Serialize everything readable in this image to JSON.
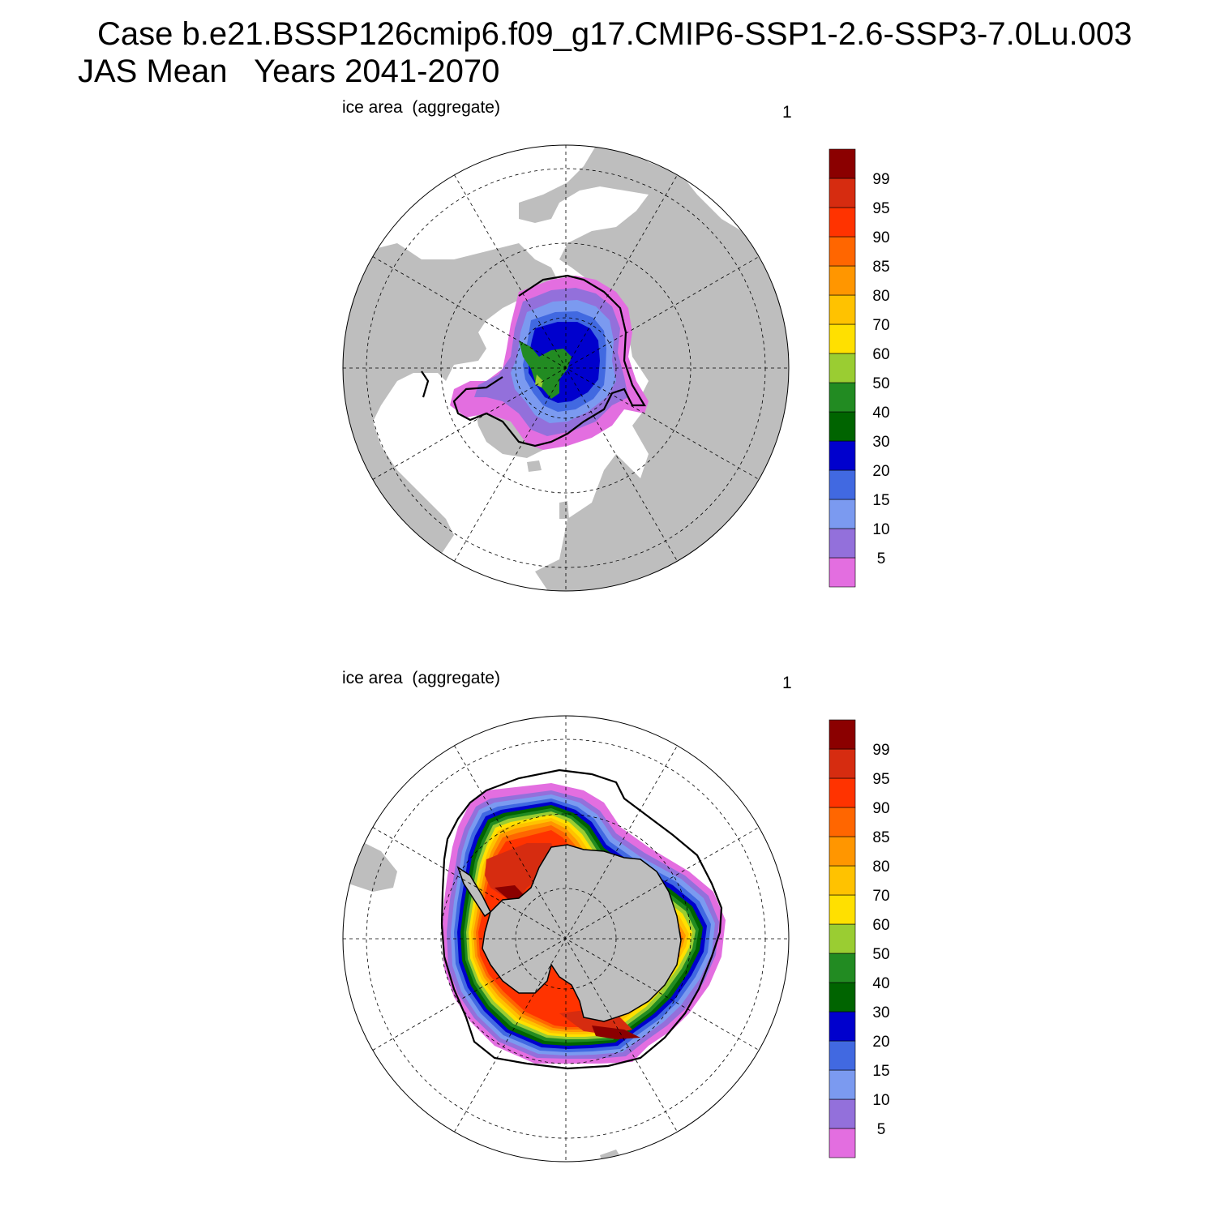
{
  "title": {
    "line1": "Case b.e21.BSSP126cmip6.f09_g17.CMIP6-SSP1-2.6-SSP3-7.0Lu.003",
    "line2": "JAS Mean   Years 2041-2070"
  },
  "colors": {
    "land": "#bebebe",
    "ocean": "#ffffff",
    "contour_line": "#000000",
    "scale": [
      "#e36ee0",
      "#9370db",
      "#7b9af0",
      "#4169e1",
      "#0000cd",
      "#006400",
      "#228b22",
      "#9acd32",
      "#ffe000",
      "#ffc200",
      "#ff9600",
      "#ff6600",
      "#ff3300",
      "#d62c10",
      "#8b0000"
    ]
  },
  "panels": [
    {
      "id": "arctic",
      "label": "ice area  (aggregate)",
      "right_label": "1",
      "hemisphere": "north",
      "colorbar_labels": [
        "99",
        "95",
        "90",
        "85",
        "80",
        "70",
        "60",
        "50",
        "40",
        "30",
        "20",
        "15",
        "10",
        "5"
      ]
    },
    {
      "id": "antarctic",
      "label": "ice area  (aggregate)",
      "right_label": "1",
      "hemisphere": "south",
      "colorbar_labels": [
        "99",
        "95",
        "90",
        "85",
        "80",
        "70",
        "60",
        "50",
        "40",
        "30",
        "20",
        "15",
        "10",
        "5"
      ]
    }
  ]
}
